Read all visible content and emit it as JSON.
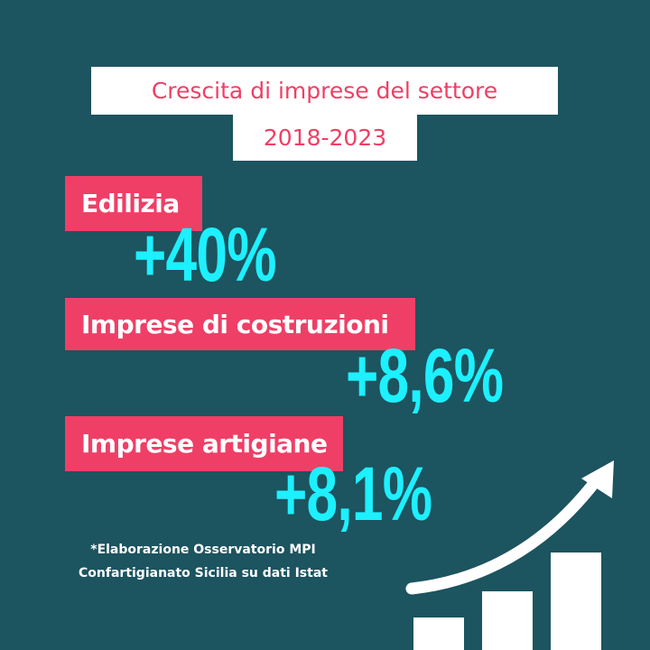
{
  "title": {
    "line1": "Crescita di imprese del settore",
    "line2": "2018-2023"
  },
  "sectors": [
    {
      "label": "Edilizia",
      "value": "+40%"
    },
    {
      "label": "Imprese di costruzioni",
      "value": "+8,6%"
    },
    {
      "label": "Imprese artigiane",
      "value": "+8,1%"
    }
  ],
  "footnote": {
    "line1": "*Elaborazione Osservatorio MPI",
    "line2": "Confartigianato Sicilia su dati Istat"
  },
  "graphic": {
    "icon": "growth-chart-arrow-icon",
    "bar_levels": [
      0.2,
      0.5,
      0.8
    ]
  },
  "colors": {
    "background": "#1c545f",
    "accent_pink": "#ef3f66",
    "value_cyan": "#1df0ff",
    "white": "#ffffff"
  }
}
